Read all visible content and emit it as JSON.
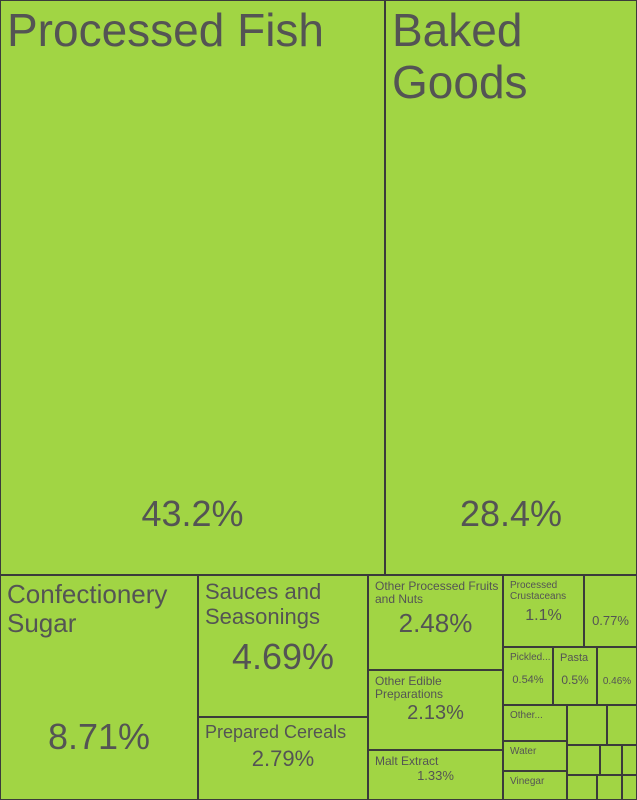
{
  "chart_data": {
    "type": "treemap",
    "title": "",
    "items": [
      {
        "name": "Processed Fish",
        "label": "Processed Fish",
        "value": "43.2%",
        "share": 43.2
      },
      {
        "name": "Baked Goods",
        "label": "Baked Goods",
        "value": "28.4%",
        "share": 28.4
      },
      {
        "name": "Confectionery Sugar",
        "label": "Confectionery Sugar",
        "value": "8.71%",
        "share": 8.71
      },
      {
        "name": "Sauces and Seasonings",
        "label": "Sauces and Seasonings",
        "value": "4.69%",
        "share": 4.69
      },
      {
        "name": "Prepared Cereals",
        "label": "Prepared Cereals",
        "value": "2.79%",
        "share": 2.79
      },
      {
        "name": "Other Processed Fruits and Nuts",
        "label": "Other Processed Fruits and Nuts",
        "value": "2.48%",
        "share": 2.48
      },
      {
        "name": "Other Edible Preparations",
        "label": "Other Edible Preparations",
        "value": "2.13%",
        "share": 2.13
      },
      {
        "name": "Malt Extract",
        "label": "Malt Extract",
        "value": "1.33%",
        "share": 1.33
      },
      {
        "name": "Processed Crustaceans",
        "label": "Processed Crustaceans",
        "value": "1.1%",
        "share": 1.1
      },
      {
        "name": "",
        "label": "",
        "value": "0.77%",
        "share": 0.77
      },
      {
        "name": "Pickled...",
        "label": "Pickled...",
        "value": "0.54%",
        "share": 0.54
      },
      {
        "name": "Pasta",
        "label": "Pasta",
        "value": "0.5%",
        "share": 0.5
      },
      {
        "name": "",
        "label": "",
        "value": "0.46%",
        "share": 0.46
      },
      {
        "name": "Other...",
        "label": "Other...",
        "value": "",
        "share": null
      },
      {
        "name": "Water",
        "label": "Water",
        "value": "",
        "share": null
      },
      {
        "name": "Vinegar",
        "label": "Vinegar",
        "value": "",
        "share": null
      },
      {
        "name": "",
        "label": "",
        "value": "",
        "share": null
      },
      {
        "name": "",
        "label": "",
        "value": "",
        "share": null
      },
      {
        "name": "",
        "label": "",
        "value": "",
        "share": null
      },
      {
        "name": "",
        "label": "",
        "value": "",
        "share": null
      },
      {
        "name": "",
        "label": "",
        "value": "",
        "share": null
      },
      {
        "name": "",
        "label": "",
        "value": "",
        "share": null
      },
      {
        "name": "",
        "label": "",
        "value": "",
        "share": null
      },
      {
        "name": "",
        "label": "",
        "value": "",
        "share": null
      }
    ],
    "colors": {
      "tile": "#a1d544",
      "border": "#3b3b3b",
      "text": "#545454"
    }
  }
}
